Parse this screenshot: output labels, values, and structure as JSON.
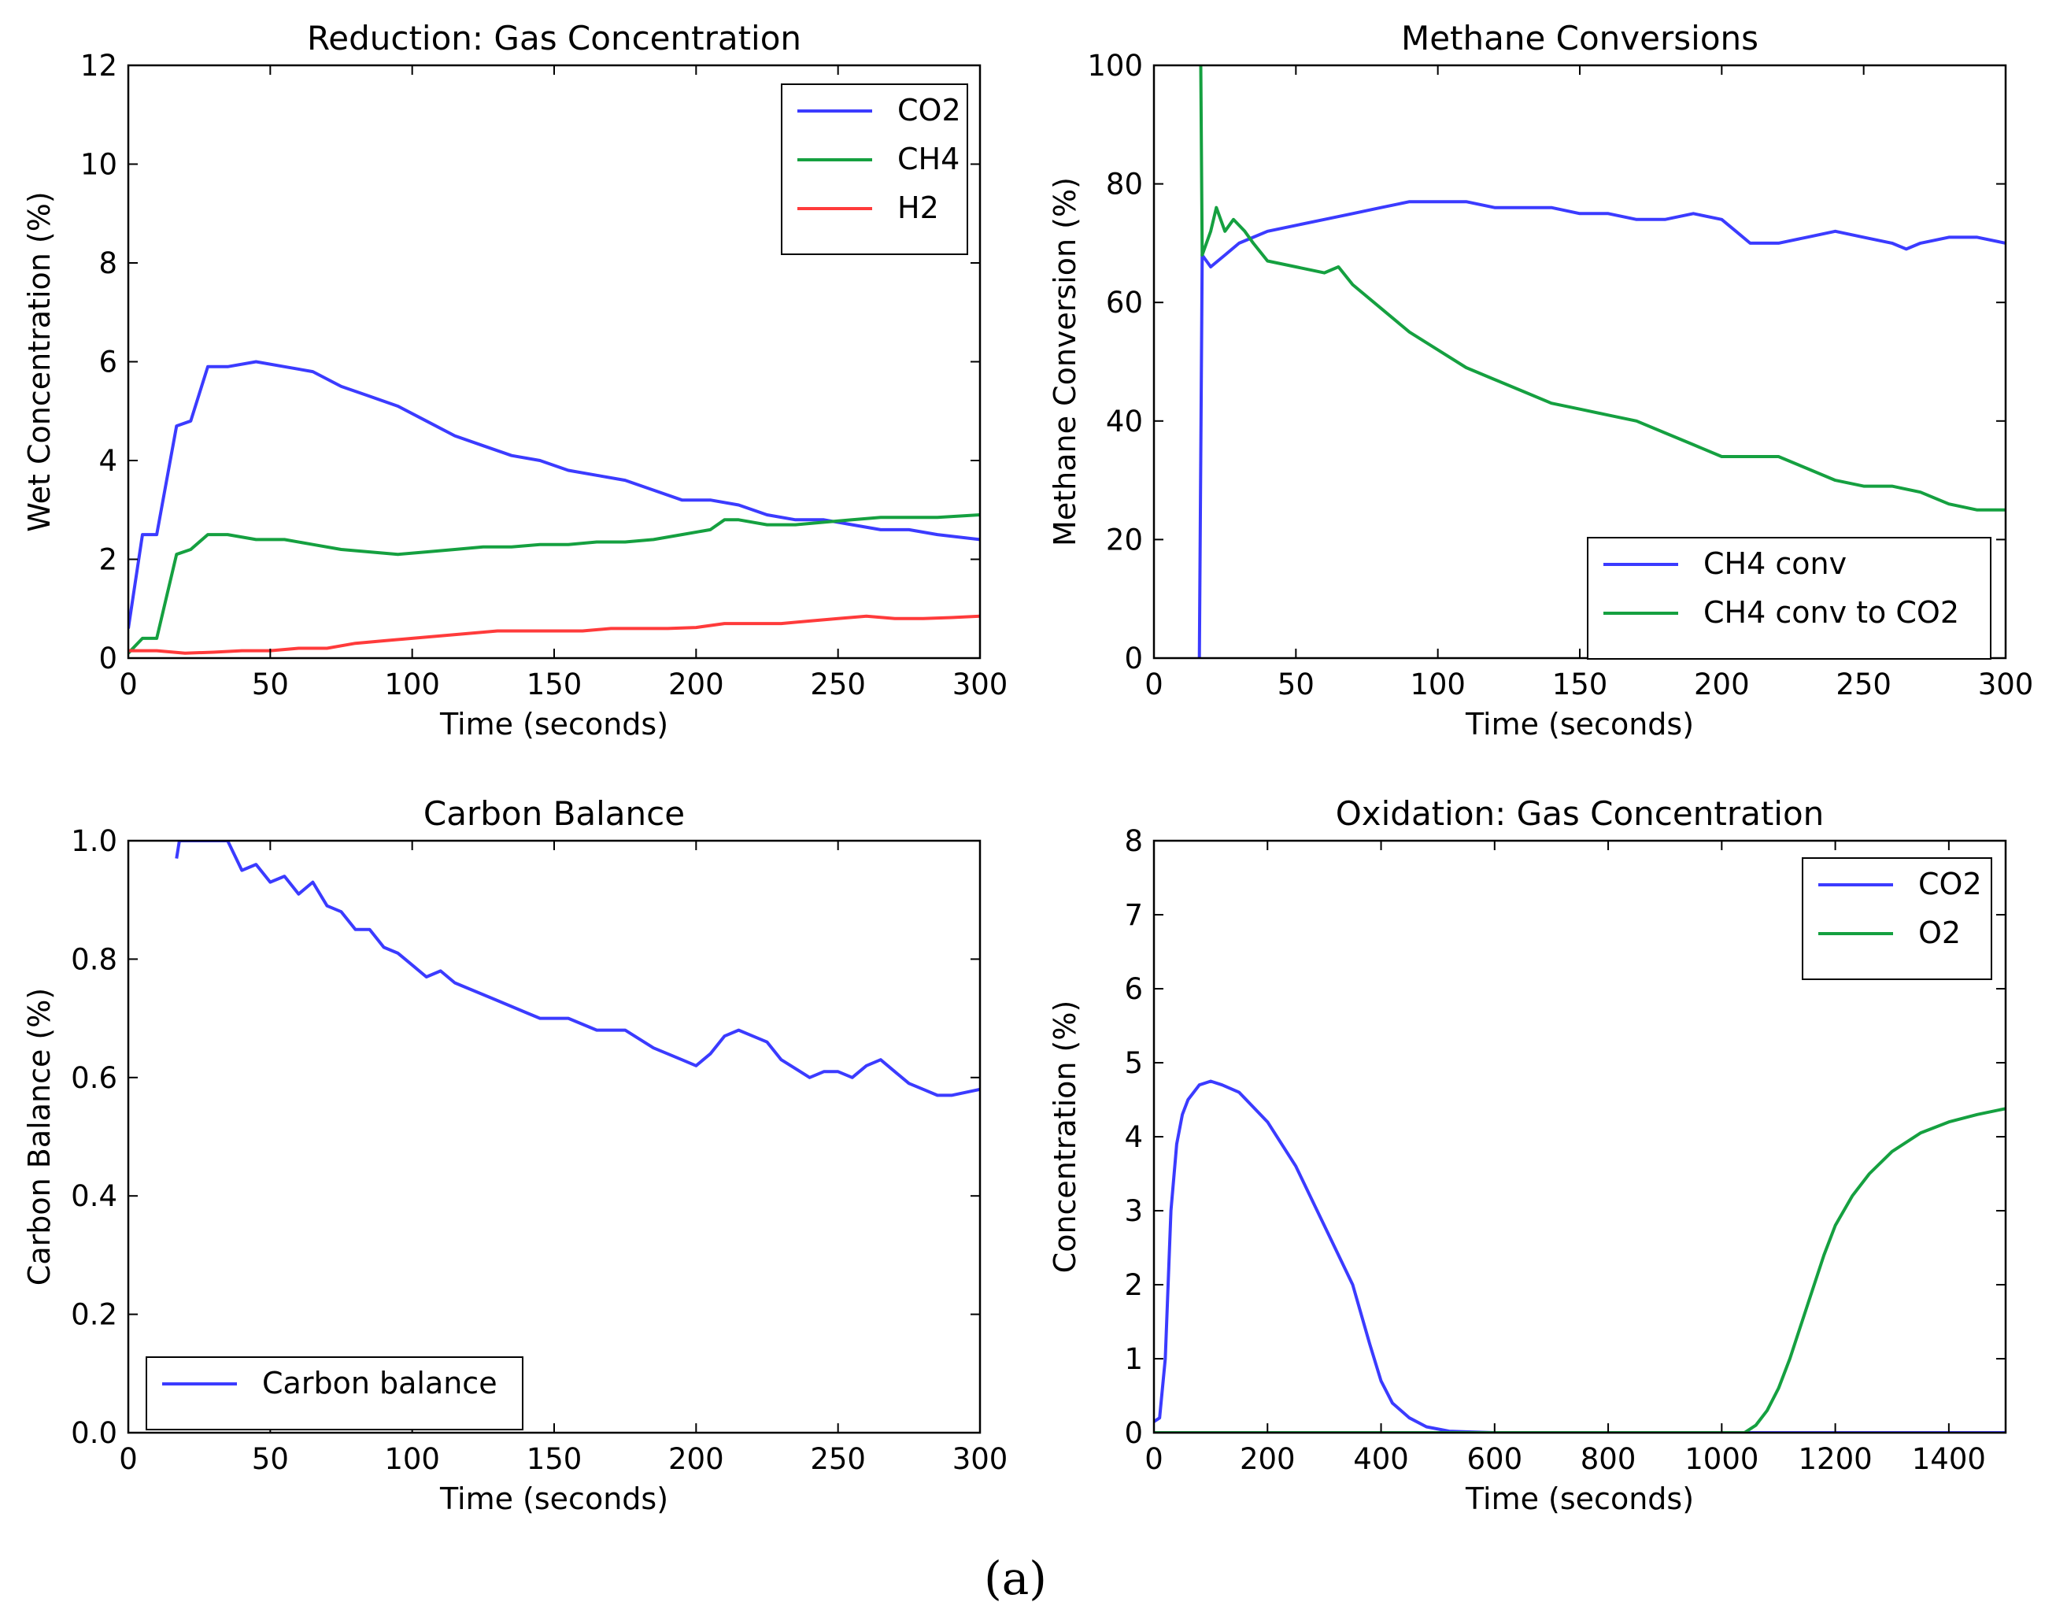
{
  "figure": {
    "caption": "(a)"
  },
  "chart_data": [
    {
      "type": "line",
      "title": "Reduction: Gas Concentration",
      "xlabel": "Time (seconds)",
      "ylabel": "Wet Concentration (%)",
      "xlim": [
        0,
        300
      ],
      "ylim": [
        0,
        12
      ],
      "xticks": [
        0,
        50,
        100,
        150,
        200,
        250,
        300
      ],
      "yticks": [
        0,
        2,
        4,
        6,
        8,
        10,
        12
      ],
      "legend": "top-right",
      "series": [
        {
          "name": "CO2",
          "color": "#3b3bff",
          "x": [
            0,
            5,
            10,
            17,
            22,
            28,
            35,
            45,
            55,
            65,
            75,
            85,
            95,
            105,
            115,
            125,
            135,
            145,
            155,
            165,
            175,
            185,
            195,
            205,
            215,
            225,
            235,
            245,
            255,
            265,
            275,
            285,
            300
          ],
          "y": [
            0.6,
            2.5,
            2.5,
            4.7,
            4.8,
            5.9,
            5.9,
            6.0,
            5.9,
            5.8,
            5.5,
            5.3,
            5.1,
            4.8,
            4.5,
            4.3,
            4.1,
            4.0,
            3.8,
            3.7,
            3.6,
            3.4,
            3.2,
            3.2,
            3.1,
            2.9,
            2.8,
            2.8,
            2.7,
            2.6,
            2.6,
            2.5,
            2.4
          ]
        },
        {
          "name": "CH4",
          "color": "#15a040",
          "x": [
            0,
            5,
            10,
            17,
            22,
            28,
            35,
            45,
            55,
            65,
            75,
            85,
            95,
            105,
            115,
            125,
            135,
            145,
            155,
            165,
            175,
            185,
            195,
            205,
            210,
            215,
            225,
            235,
            245,
            255,
            265,
            275,
            285,
            300
          ],
          "y": [
            0.1,
            0.4,
            0.4,
            2.1,
            2.2,
            2.5,
            2.5,
            2.4,
            2.4,
            2.3,
            2.2,
            2.15,
            2.1,
            2.15,
            2.2,
            2.25,
            2.25,
            2.3,
            2.3,
            2.35,
            2.35,
            2.4,
            2.5,
            2.6,
            2.8,
            2.8,
            2.7,
            2.7,
            2.75,
            2.8,
            2.85,
            2.85,
            2.85,
            2.9
          ]
        },
        {
          "name": "H2",
          "color": "#ff3b3b",
          "x": [
            0,
            10,
            20,
            30,
            40,
            50,
            60,
            70,
            80,
            90,
            100,
            110,
            120,
            130,
            140,
            150,
            160,
            170,
            180,
            190,
            200,
            210,
            220,
            230,
            240,
            250,
            260,
            270,
            280,
            290,
            300
          ],
          "y": [
            0.15,
            0.15,
            0.1,
            0.12,
            0.15,
            0.15,
            0.2,
            0.2,
            0.3,
            0.35,
            0.4,
            0.45,
            0.5,
            0.55,
            0.55,
            0.55,
            0.55,
            0.6,
            0.6,
            0.6,
            0.62,
            0.7,
            0.7,
            0.7,
            0.75,
            0.8,
            0.85,
            0.8,
            0.8,
            0.82,
            0.85
          ]
        }
      ]
    },
    {
      "type": "line",
      "title": "Methane Conversions",
      "xlabel": "Time (seconds)",
      "ylabel": "Methane Conversion (%)",
      "xlim": [
        0,
        300
      ],
      "ylim": [
        0,
        100
      ],
      "xticks": [
        0,
        50,
        100,
        150,
        200,
        250,
        300
      ],
      "yticks": [
        0,
        20,
        40,
        60,
        80,
        100
      ],
      "legend": "bottom-right",
      "series": [
        {
          "name": "CH4 conv",
          "color": "#3b3bff",
          "x": [
            16,
            17,
            20,
            25,
            30,
            35,
            40,
            50,
            60,
            70,
            80,
            90,
            100,
            110,
            120,
            130,
            140,
            150,
            160,
            170,
            180,
            190,
            200,
            205,
            210,
            220,
            230,
            240,
            250,
            260,
            265,
            270,
            280,
            290,
            300
          ],
          "y": [
            0,
            68,
            66,
            68,
            70,
            71,
            72,
            73,
            74,
            75,
            76,
            77,
            77,
            77,
            76,
            76,
            76,
            75,
            75,
            74,
            74,
            75,
            74,
            72,
            70,
            70,
            71,
            72,
            71,
            70,
            69,
            70,
            71,
            71,
            70
          ]
        },
        {
          "name": "CH4 conv to CO2",
          "color": "#15a040",
          "x": [
            16,
            16.5,
            17,
            20,
            22,
            25,
            28,
            32,
            35,
            40,
            50,
            60,
            65,
            70,
            80,
            90,
            100,
            110,
            120,
            130,
            140,
            150,
            160,
            170,
            180,
            190,
            200,
            210,
            220,
            230,
            240,
            250,
            260,
            270,
            280,
            290,
            300
          ],
          "y": [
            100,
            100,
            68,
            72,
            76,
            72,
            74,
            72,
            70,
            67,
            66,
            65,
            66,
            63,
            59,
            55,
            52,
            49,
            47,
            45,
            43,
            42,
            41,
            40,
            38,
            36,
            34,
            34,
            34,
            32,
            30,
            29,
            29,
            28,
            26,
            25,
            25
          ]
        }
      ]
    },
    {
      "type": "line",
      "title": "Carbon Balance",
      "xlabel": "Time (seconds)",
      "ylabel": "Carbon Balance (%)",
      "xlim": [
        0,
        300
      ],
      "ylim": [
        0.0,
        1.0
      ],
      "xticks": [
        0,
        50,
        100,
        150,
        200,
        250,
        300
      ],
      "yticks": [
        0.0,
        0.2,
        0.4,
        0.6,
        0.8,
        1.0
      ],
      "legend": "bottom-left",
      "series": [
        {
          "name": "Carbon balance",
          "color": "#3b3bff",
          "x": [
            17,
            18,
            20,
            35,
            38,
            40,
            45,
            50,
            55,
            60,
            65,
            70,
            75,
            80,
            85,
            90,
            95,
            100,
            105,
            110,
            115,
            120,
            130,
            140,
            145,
            150,
            155,
            165,
            175,
            185,
            190,
            195,
            200,
            205,
            210,
            215,
            220,
            225,
            230,
            240,
            245,
            250,
            255,
            260,
            265,
            270,
            275,
            280,
            285,
            290,
            300
          ],
          "y": [
            0.97,
            1.0,
            1.0,
            1.0,
            0.97,
            0.95,
            0.96,
            0.93,
            0.94,
            0.91,
            0.93,
            0.89,
            0.88,
            0.85,
            0.85,
            0.82,
            0.81,
            0.79,
            0.77,
            0.78,
            0.76,
            0.75,
            0.73,
            0.71,
            0.7,
            0.7,
            0.7,
            0.68,
            0.68,
            0.65,
            0.64,
            0.63,
            0.62,
            0.64,
            0.67,
            0.68,
            0.67,
            0.66,
            0.63,
            0.6,
            0.61,
            0.61,
            0.6,
            0.62,
            0.63,
            0.61,
            0.59,
            0.58,
            0.57,
            0.57,
            0.58
          ]
        }
      ]
    },
    {
      "type": "line",
      "title": "Oxidation: Gas Concentration",
      "xlabel": "Time (seconds)",
      "ylabel": "Concentration (%)",
      "xlim": [
        0,
        1500
      ],
      "ylim": [
        0,
        8
      ],
      "xticks": [
        0,
        200,
        400,
        600,
        800,
        1000,
        1200,
        1400
      ],
      "yticks": [
        0,
        1,
        2,
        3,
        4,
        5,
        6,
        7,
        8
      ],
      "legend": "top-right",
      "series": [
        {
          "name": "CO2",
          "color": "#3b3bff",
          "x": [
            0,
            10,
            20,
            30,
            40,
            50,
            60,
            80,
            100,
            120,
            150,
            200,
            250,
            300,
            350,
            380,
            400,
            420,
            450,
            480,
            520,
            560,
            600,
            700,
            800,
            900,
            1000,
            1100,
            1200,
            1300,
            1400,
            1500
          ],
          "y": [
            0.15,
            0.2,
            1.0,
            3.0,
            3.9,
            4.3,
            4.5,
            4.7,
            4.75,
            4.7,
            4.6,
            4.2,
            3.6,
            2.8,
            2.0,
            1.2,
            0.7,
            0.4,
            0.2,
            0.08,
            0.02,
            0.01,
            0,
            0,
            0,
            0,
            0,
            0,
            0,
            0,
            0,
            0
          ]
        },
        {
          "name": "O2",
          "color": "#15a040",
          "x": [
            0,
            200,
            400,
            600,
            800,
            1000,
            1040,
            1060,
            1080,
            1100,
            1120,
            1150,
            1180,
            1200,
            1230,
            1260,
            1300,
            1350,
            1400,
            1450,
            1500
          ],
          "y": [
            0,
            0,
            0,
            0,
            0,
            0,
            0,
            0.1,
            0.3,
            0.6,
            1.0,
            1.7,
            2.4,
            2.8,
            3.2,
            3.5,
            3.8,
            4.05,
            4.2,
            4.3,
            4.38
          ]
        }
      ]
    }
  ]
}
